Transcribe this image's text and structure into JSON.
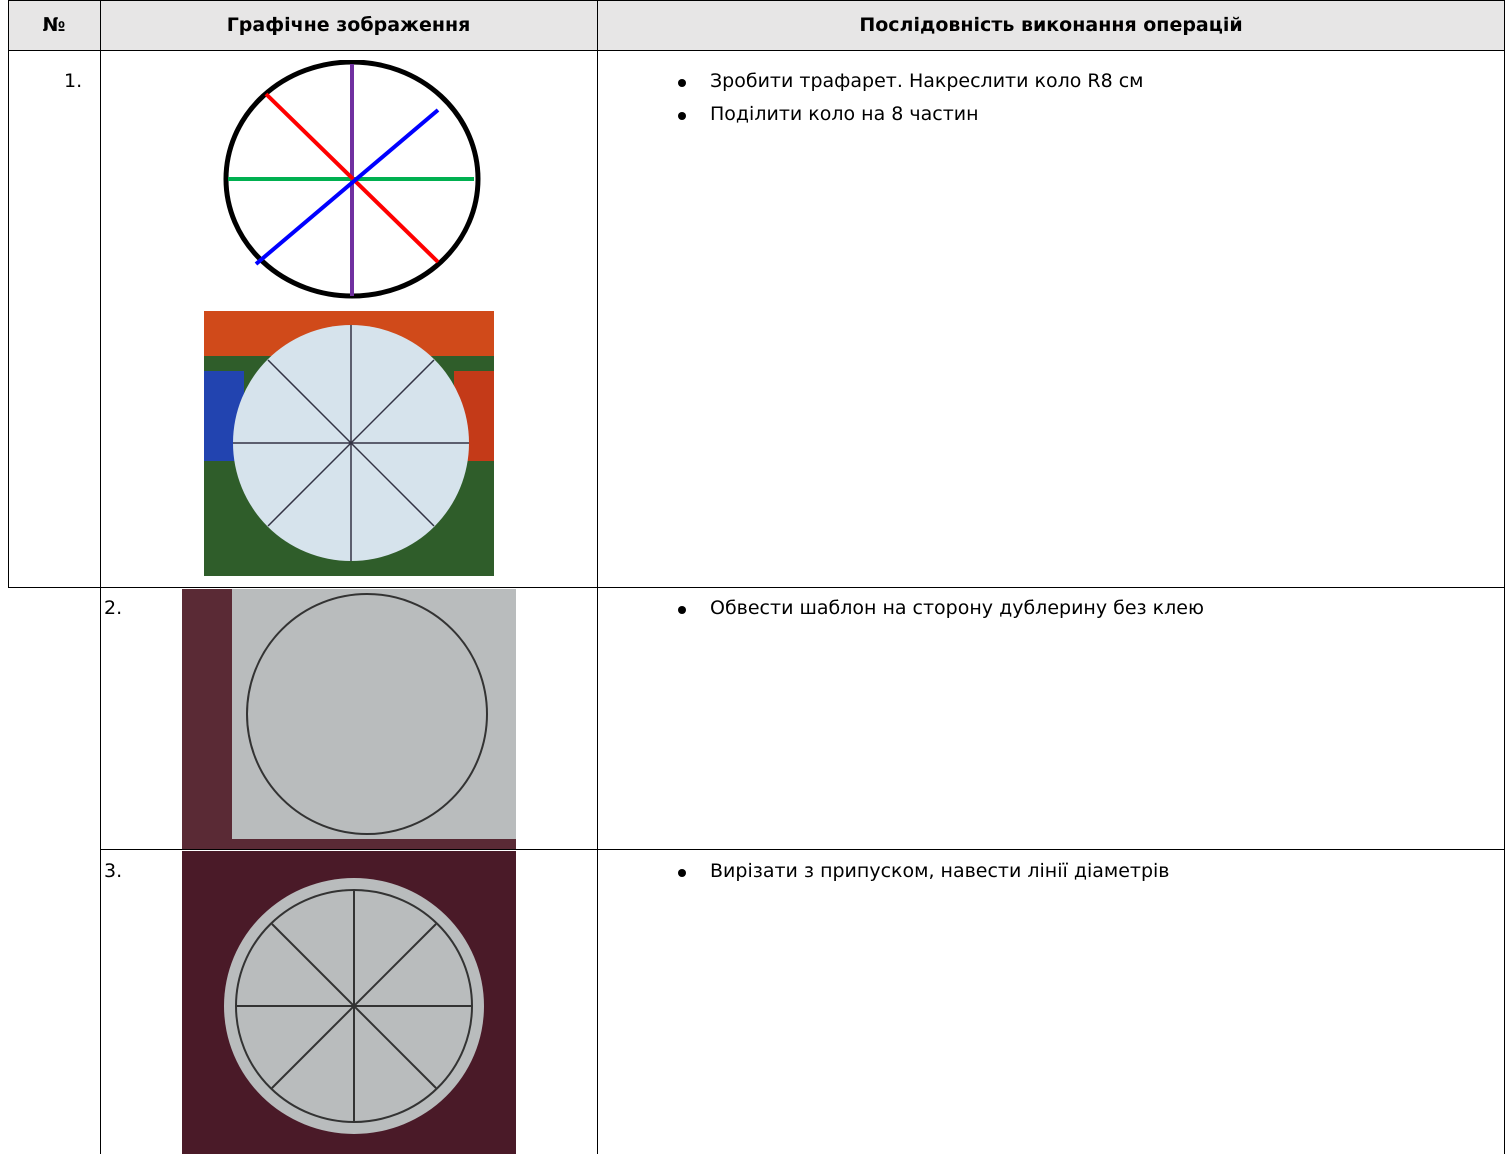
{
  "header": {
    "columns": [
      "№",
      "Графічне зображення",
      "Послідовність виконання операцій"
    ]
  },
  "rows": [
    {
      "number": "1.",
      "steps": [
        "Зробити трафарет. Накреслити коло R8 см",
        "Поділити коло на 8 частин"
      ]
    },
    {
      "number": "2.",
      "steps": [
        "Обвести шаблон на сторону дублерину без клею"
      ]
    },
    {
      "number": "3.",
      "steps": [
        "Вирізати з припуском, навести лінії діаметрів"
      ]
    }
  ]
}
